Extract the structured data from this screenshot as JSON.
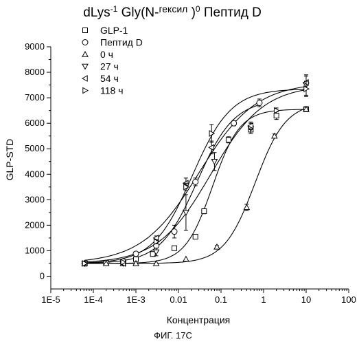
{
  "figure": {
    "title_main": "dLys",
    "title_sup1": "-1",
    "title_mid": " Gly(N-",
    "title_small": "гексил",
    "title_close": " )",
    "title_sup2": "0",
    "title_end": " Пептид D",
    "caption": "ФИГ. 17С"
  },
  "chart_data": {
    "type": "scatter",
    "title": "dLys-1 Gly(N-гексил )0 Пептид D",
    "xlabel": "Концентрация",
    "ylabel": "GLP-STD",
    "xscale": "log",
    "xlim": [
      1e-05,
      100
    ],
    "ylim": [
      -500,
      9000
    ],
    "xticks": [
      "1E-5",
      "1E-4",
      "1E-3",
      "0.01",
      "0.1",
      "1",
      "10",
      "100"
    ],
    "yticks": [
      "0",
      "1000",
      "2000",
      "3000",
      "4000",
      "5000",
      "6000",
      "7000",
      "8000",
      "9000"
    ],
    "grid": false,
    "legend_position": "top-left",
    "series": [
      {
        "name": "GLP-1",
        "marker": "square",
        "x": [
          6.25e-05,
          0.0002,
          0.0005,
          0.001,
          0.0025,
          0.008,
          0.025,
          0.04,
          0.15,
          0.5,
          2,
          10
        ],
        "y": [
          500,
          520,
          560,
          670,
          870,
          1100,
          1550,
          2550,
          5350,
          5750,
          6300,
          6550
        ],
        "err": [
          0,
          0,
          0,
          40,
          60,
          50,
          80,
          100,
          120,
          150,
          150,
          100
        ]
      },
      {
        "name": "Пептид D",
        "marker": "circle",
        "x": [
          6.25e-05,
          0.0002,
          0.0005,
          0.001,
          0.003,
          0.008,
          0.025,
          0.2,
          0.8
        ],
        "y": [
          500,
          520,
          580,
          880,
          1200,
          1750,
          3700,
          6000,
          6800
        ],
        "err": [
          0,
          0,
          0,
          60,
          80,
          250,
          150,
          100,
          150
        ]
      },
      {
        "name": "0 ч",
        "marker": "triangle-up",
        "x": [
          6.25e-05,
          0.0002,
          0.0005,
          0.001,
          0.003,
          0.015,
          0.08,
          0.4,
          1.8,
          10
        ],
        "y": [
          500,
          500,
          500,
          500,
          500,
          670,
          1150,
          2700,
          5500,
          6550
        ],
        "err": [
          0,
          0,
          0,
          0,
          0,
          0,
          50,
          120,
          80,
          80
        ]
      },
      {
        "name": "27 ч",
        "marker": "triangle-down",
        "x": [
          6.25e-05,
          0.0005,
          0.003,
          0.015,
          0.07,
          0.5,
          10
        ],
        "y": [
          500,
          500,
          950,
          2500,
          4500,
          5800,
          7500
        ],
        "err": [
          0,
          0,
          150,
          700,
          350,
          200,
          400
        ]
      },
      {
        "name": "54 ч",
        "marker": "triangle-left",
        "x": [
          6.25e-05,
          0.0005,
          0.003,
          0.015,
          0.06,
          0.5,
          10
        ],
        "y": [
          500,
          500,
          1500,
          3650,
          5050,
          5900,
          7600
        ],
        "err": [
          0,
          0,
          80,
          200,
          250,
          150,
          250
        ]
      },
      {
        "name": "118 ч",
        "marker": "triangle-right",
        "x": [
          6.25e-05,
          0.0005,
          0.003,
          0.015,
          0.06,
          2,
          10
        ],
        "y": [
          500,
          550,
          1350,
          3500,
          5600,
          6500,
          7350
        ],
        "err": [
          0,
          0,
          80,
          150,
          350,
          100,
          300
        ]
      }
    ]
  }
}
